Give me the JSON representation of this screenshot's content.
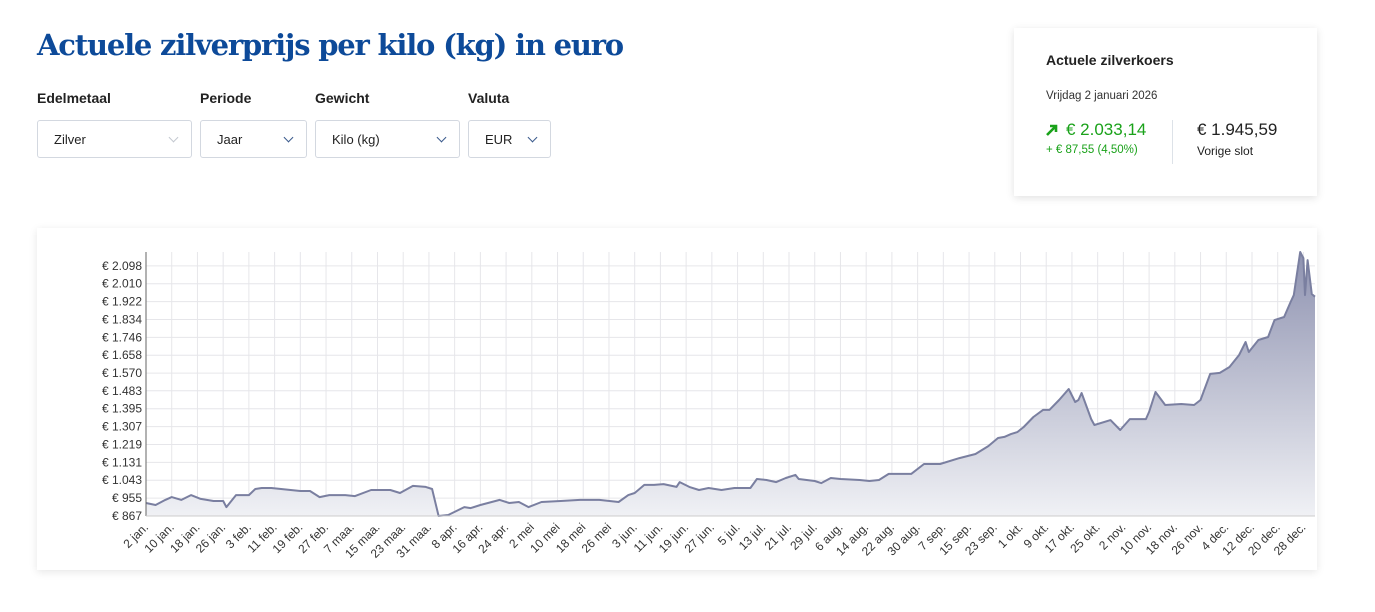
{
  "title": "Actuele zilverprijs per kilo (kg) in euro",
  "filters": [
    {
      "label": "Edelmetaal",
      "value": "Zilver"
    },
    {
      "label": "Periode",
      "value": "Jaar"
    },
    {
      "label": "Gewicht",
      "value": "Kilo (kg)"
    },
    {
      "label": "Valuta",
      "value": "EUR"
    }
  ],
  "quote": {
    "title": "Actuele zilverkoers",
    "date": "Vrijdag 2 januari 2026",
    "price": "€ 2.033,14",
    "change": "+ € 87,55 (4,50%)",
    "previous": "€ 1.945,59",
    "previous_label": "Vorige slot",
    "icon": "arrow-up-right-icon",
    "up_color": "#1aa21a"
  },
  "chart_data": {
    "type": "area",
    "title": "",
    "xlabel": "",
    "ylabel": "",
    "x_unit": "days since 2 jan.",
    "xlim": [
      0,
      363.6
    ],
    "ylim": [
      867,
      2166
    ],
    "grid": true,
    "line_color": "#7a7fa0",
    "y_ticks": [
      867,
      955,
      1043,
      1131,
      1219,
      1307,
      1395,
      1483,
      1570,
      1658,
      1746,
      1834,
      1922,
      2010,
      2098
    ],
    "y_tick_labels": [
      "€ 867",
      "€ 955",
      "€ 1.043",
      "€ 1.131",
      "€ 1.219",
      "€ 1.307",
      "€ 1.395",
      "€ 1.483",
      "€ 1.570",
      "€ 1.658",
      "€ 1.746",
      "€ 1.834",
      "€ 1.922",
      "€ 2.010",
      "€ 2.098"
    ],
    "x_tick_step": 8,
    "x_tick_labels": [
      "2 jan.",
      "10 jan.",
      "18 jan.",
      "26 jan.",
      "3 feb.",
      "11 feb.",
      "19 feb.",
      "27 feb.",
      "7 maa.",
      "15 maa.",
      "23 maa.",
      "31 maa.",
      "8 apr.",
      "16 apr.",
      "24 apr.",
      "2 mei",
      "10 mei",
      "18 mei",
      "26 mei",
      "3 jun.",
      "11 jun.",
      "19 jun.",
      "27 jun.",
      "5 jul.",
      "13 jul.",
      "21 jul.",
      "29 jul.",
      "6 aug.",
      "14 aug.",
      "22 aug.",
      "30 aug.",
      "7 sep.",
      "15 sep.",
      "23 sep.",
      "1 okt.",
      "9 okt.",
      "17 okt.",
      "25 okt.",
      "2 nov.",
      "10 nov.",
      "18 nov.",
      "26 nov.",
      "4 dec.",
      "12 dec.",
      "20 dec.",
      "28 dec."
    ],
    "points": [
      [
        0,
        931
      ],
      [
        3,
        921
      ],
      [
        6,
        946
      ],
      [
        8,
        960
      ],
      [
        11,
        946
      ],
      [
        14,
        970
      ],
      [
        17,
        951
      ],
      [
        21,
        941
      ],
      [
        24,
        941
      ],
      [
        25,
        911
      ],
      [
        28,
        970
      ],
      [
        32,
        970
      ],
      [
        34,
        1000
      ],
      [
        36,
        1005
      ],
      [
        39,
        1005
      ],
      [
        48,
        990
      ],
      [
        51,
        990
      ],
      [
        54,
        960
      ],
      [
        57,
        970
      ],
      [
        62,
        970
      ],
      [
        65,
        965
      ],
      [
        70,
        995
      ],
      [
        76,
        995
      ],
      [
        79,
        980
      ],
      [
        83,
        1015
      ],
      [
        87,
        1010
      ],
      [
        89,
        1000
      ],
      [
        91,
        867
      ],
      [
        94,
        872
      ],
      [
        96,
        887
      ],
      [
        99,
        911
      ],
      [
        101,
        906
      ],
      [
        104,
        921
      ],
      [
        110,
        946
      ],
      [
        113,
        931
      ],
      [
        116,
        936
      ],
      [
        119,
        911
      ],
      [
        123,
        936
      ],
      [
        129,
        941
      ],
      [
        135,
        946
      ],
      [
        141,
        946
      ],
      [
        147,
        936
      ],
      [
        150,
        970
      ],
      [
        152,
        980
      ],
      [
        155,
        1020
      ],
      [
        158,
        1020
      ],
      [
        161,
        1024
      ],
      [
        165,
        1010
      ],
      [
        166,
        1034
      ],
      [
        169,
        1010
      ],
      [
        172,
        995
      ],
      [
        175,
        1005
      ],
      [
        179,
        995
      ],
      [
        183,
        1005
      ],
      [
        188,
        1005
      ],
      [
        190,
        1049
      ],
      [
        193,
        1044
      ],
      [
        196,
        1034
      ],
      [
        199,
        1054
      ],
      [
        202,
        1069
      ],
      [
        203,
        1049
      ],
      [
        208,
        1039
      ],
      [
        210,
        1029
      ],
      [
        213,
        1054
      ],
      [
        216,
        1049
      ],
      [
        222,
        1044
      ],
      [
        225,
        1039
      ],
      [
        228,
        1044
      ],
      [
        231,
        1074
      ],
      [
        238,
        1074
      ],
      [
        242,
        1123
      ],
      [
        247,
        1123
      ],
      [
        253,
        1152
      ],
      [
        258,
        1172
      ],
      [
        262,
        1211
      ],
      [
        265,
        1251
      ],
      [
        267,
        1256
      ],
      [
        269,
        1270
      ],
      [
        271,
        1280
      ],
      [
        273,
        1305
      ],
      [
        276,
        1354
      ],
      [
        279,
        1389
      ],
      [
        281,
        1389
      ],
      [
        284,
        1438
      ],
      [
        287,
        1492
      ],
      [
        289,
        1428
      ],
      [
        290,
        1438
      ],
      [
        291,
        1472
      ],
      [
        294,
        1344
      ],
      [
        295,
        1315
      ],
      [
        300,
        1339
      ],
      [
        303,
        1290
      ],
      [
        306,
        1344
      ],
      [
        311,
        1344
      ],
      [
        312,
        1379
      ],
      [
        314,
        1477
      ],
      [
        317,
        1413
      ],
      [
        322,
        1418
      ],
      [
        326,
        1413
      ],
      [
        328,
        1438
      ],
      [
        331,
        1566
      ],
      [
        334,
        1571
      ],
      [
        337,
        1600
      ],
      [
        340,
        1659
      ],
      [
        342,
        1723
      ],
      [
        343,
        1674
      ],
      [
        346,
        1733
      ],
      [
        349,
        1748
      ],
      [
        351,
        1831
      ],
      [
        354,
        1846
      ],
      [
        356,
        1920
      ],
      [
        357,
        1954
      ],
      [
        359,
        2166
      ],
      [
        360,
        2136
      ],
      [
        360.5,
        1954
      ],
      [
        361.3,
        2126
      ],
      [
        362.6,
        1959
      ],
      [
        363.6,
        1946
      ]
    ]
  }
}
